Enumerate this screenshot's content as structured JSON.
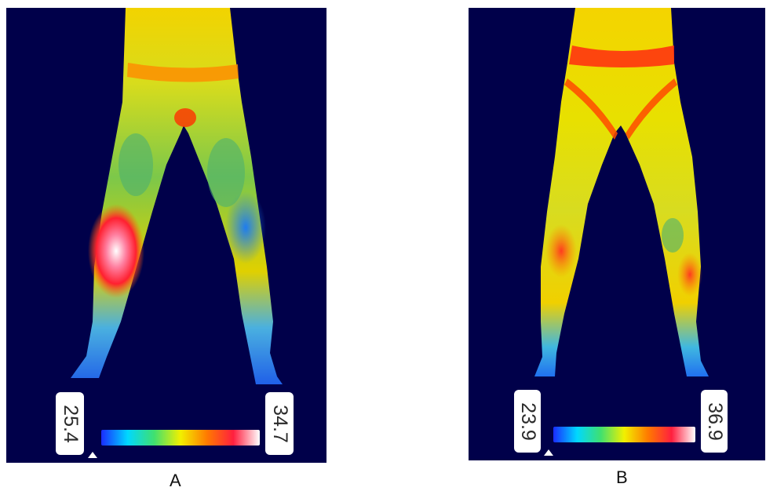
{
  "panels": [
    {
      "caption": "A",
      "scale_min": "25.4",
      "scale_max": "34.7"
    },
    {
      "caption": "B",
      "scale_min": "23.9",
      "scale_max": "36.9"
    }
  ],
  "colors": {
    "background": "#00004a",
    "scale": [
      "#1a2cff",
      "#00d8ff",
      "#3fe070",
      "#f2f000",
      "#ff7a00",
      "#ff1f3f",
      "#ffffff"
    ]
  }
}
